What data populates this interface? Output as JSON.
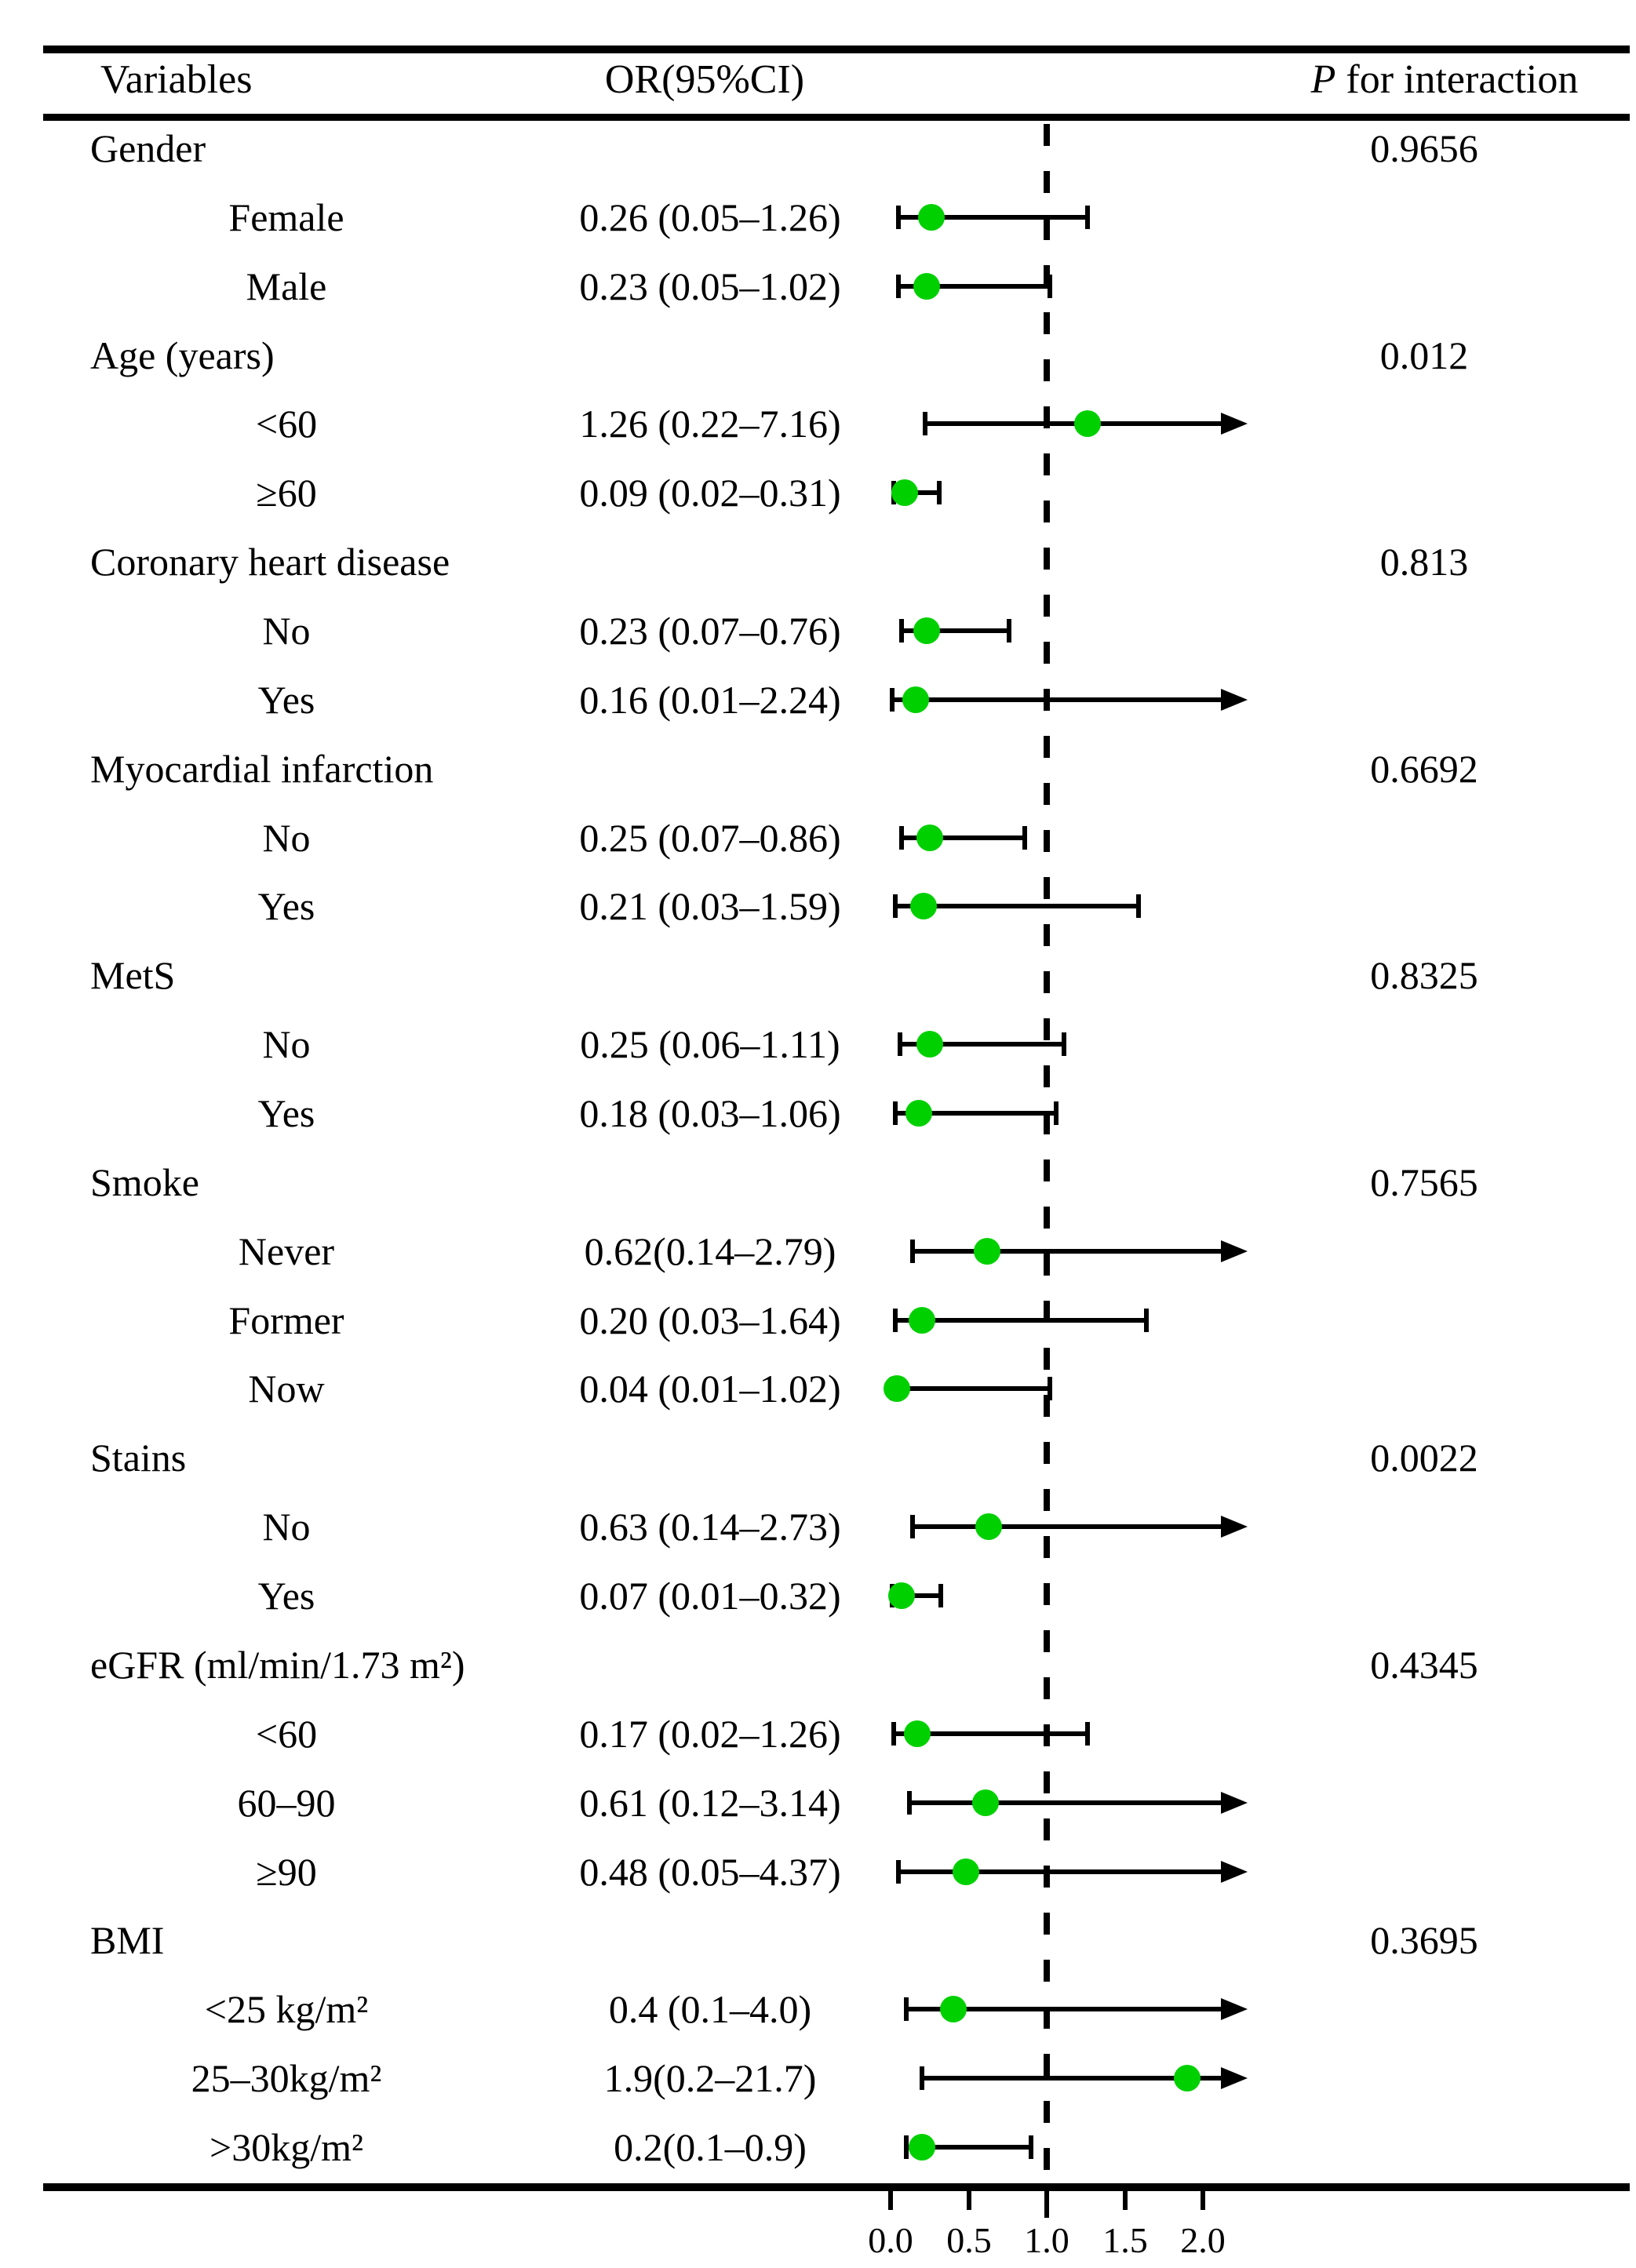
{
  "header": {
    "col_variables": "Variables",
    "col_or": "OR(95%CI)",
    "col_p_italic": "P",
    "col_p_rest": " for interaction"
  },
  "colors": {
    "marker_green": "#00d000",
    "line_black": "#000000",
    "background": "#ffffff"
  },
  "chart_data": {
    "type": "scatter",
    "subtype": "forest-plot",
    "title": "",
    "xlabel": "",
    "ylabel": "",
    "x_axis": {
      "tick_values": [
        0,
        0.5,
        1,
        1.5,
        2
      ],
      "tick_labels": [
        "0.0",
        "0.5",
        "1.0",
        "1.5",
        "2.0"
      ],
      "range_shown": [
        0,
        2.25
      ],
      "reference_line": 1.0,
      "grid": false
    },
    "legend": null,
    "rows": [
      {
        "group": "Gender",
        "p": "0.9656"
      },
      {
        "label": "Female",
        "or_text": "0.26 (0.05–1.26)",
        "est": 0.26,
        "lo": 0.05,
        "hi": 1.26,
        "arrow": false
      },
      {
        "label": "Male",
        "or_text": "0.23 (0.05–1.02)",
        "est": 0.23,
        "lo": 0.05,
        "hi": 1.02,
        "arrow": false
      },
      {
        "group": "Age (years)",
        "p": "0.012"
      },
      {
        "label": "<60",
        "or_text": "1.26 (0.22–7.16)",
        "est": 1.26,
        "lo": 0.22,
        "hi": 7.16,
        "arrow": true
      },
      {
        "label": "≥60",
        "or_text": "0.09 (0.02–0.31)",
        "est": 0.09,
        "lo": 0.02,
        "hi": 0.31,
        "arrow": false
      },
      {
        "group": "Coronary heart disease",
        "p": "0.813"
      },
      {
        "label": "No",
        "or_text": "0.23 (0.07–0.76)",
        "est": 0.23,
        "lo": 0.07,
        "hi": 0.76,
        "arrow": false
      },
      {
        "label": "Yes",
        "or_text": "0.16 (0.01–2.24)",
        "est": 0.16,
        "lo": 0.01,
        "hi": 2.24,
        "arrow": true
      },
      {
        "group": "Myocardial infarction",
        "p": "0.6692"
      },
      {
        "label": "No",
        "or_text": "0.25 (0.07–0.86)",
        "est": 0.25,
        "lo": 0.07,
        "hi": 0.86,
        "arrow": false
      },
      {
        "label": "Yes",
        "or_text": "0.21 (0.03–1.59)",
        "est": 0.21,
        "lo": 0.03,
        "hi": 1.59,
        "arrow": false
      },
      {
        "group": "MetS",
        "p": "0.8325"
      },
      {
        "label": "No",
        "or_text": "0.25 (0.06–1.11)",
        "est": 0.25,
        "lo": 0.06,
        "hi": 1.11,
        "arrow": false
      },
      {
        "label": "Yes",
        "or_text": "0.18 (0.03–1.06)",
        "est": 0.18,
        "lo": 0.03,
        "hi": 1.06,
        "arrow": false
      },
      {
        "group": "Smoke",
        "p": "0.7565"
      },
      {
        "label": "Never",
        "or_text": "0.62(0.14–2.79)",
        "est": 0.62,
        "lo": 0.14,
        "hi": 2.79,
        "arrow": true
      },
      {
        "label": "Former",
        "or_text": "0.20 (0.03–1.64)",
        "est": 0.2,
        "lo": 0.03,
        "hi": 1.64,
        "arrow": false
      },
      {
        "label": "Now",
        "or_text": "0.04 (0.01–1.02)",
        "est": 0.04,
        "lo": 0.01,
        "hi": 1.02,
        "arrow": false
      },
      {
        "group": "Stains",
        "p": "0.0022"
      },
      {
        "label": "No",
        "or_text": "0.63 (0.14–2.73)",
        "est": 0.63,
        "lo": 0.14,
        "hi": 2.73,
        "arrow": true
      },
      {
        "label": "Yes",
        "or_text": "0.07 (0.01–0.32)",
        "est": 0.07,
        "lo": 0.01,
        "hi": 0.32,
        "arrow": false
      },
      {
        "group": "eGFR (ml/min/1.73 m²)",
        "p": "0.4345"
      },
      {
        "label": "<60",
        "or_text": "0.17 (0.02–1.26)",
        "est": 0.17,
        "lo": 0.02,
        "hi": 1.26,
        "arrow": false
      },
      {
        "label": "60–90",
        "or_text": "0.61 (0.12–3.14)",
        "est": 0.61,
        "lo": 0.12,
        "hi": 3.14,
        "arrow": true
      },
      {
        "label": "≥90",
        "or_text": "0.48 (0.05–4.37)",
        "est": 0.48,
        "lo": 0.05,
        "hi": 4.37,
        "arrow": true
      },
      {
        "group": "BMI",
        "p": "0.3695"
      },
      {
        "label": "<25 kg/m²",
        "or_text": "0.4 (0.1–4.0)",
        "est": 0.4,
        "lo": 0.1,
        "hi": 4.0,
        "arrow": true
      },
      {
        "label": "25–30kg/m²",
        "or_text": "1.9(0.2–21.7)",
        "est": 1.9,
        "lo": 0.2,
        "hi": 21.7,
        "arrow": true
      },
      {
        "label": ">30kg/m²",
        "or_text": "0.2(0.1–0.9)",
        "est": 0.2,
        "lo": 0.1,
        "hi": 0.9,
        "arrow": false
      }
    ]
  }
}
